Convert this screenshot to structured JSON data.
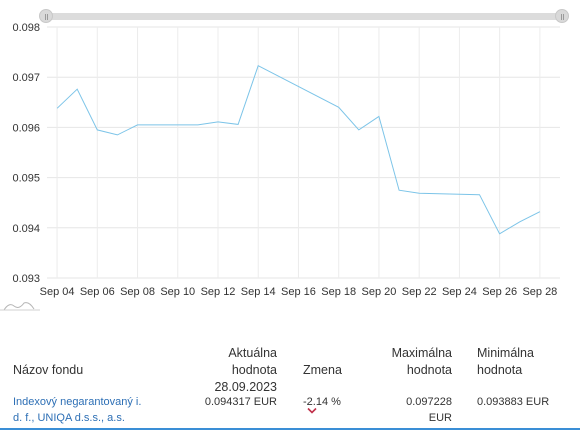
{
  "chart_data": {
    "type": "line",
    "title": "",
    "xlabel": "",
    "ylabel": "",
    "ylim": [
      0.093,
      0.098
    ],
    "y_ticks": [
      "0.093",
      "0.094",
      "0.095",
      "0.096",
      "0.097",
      "0.098"
    ],
    "x_ticks": [
      "Sep 04",
      "Sep 06",
      "Sep 08",
      "Sep 10",
      "Sep 12",
      "Sep 14",
      "Sep 16",
      "Sep 18",
      "Sep 20",
      "Sep 22",
      "Sep 24",
      "Sep 26",
      "Sep 28"
    ],
    "grid": true,
    "line_color": "#7cc4e8",
    "series": [
      {
        "points": [
          [
            "2023-09-04",
            0.09638
          ],
          [
            "2023-09-05",
            0.09676
          ],
          [
            "2023-09-06",
            0.09595
          ],
          [
            "2023-09-07",
            0.09585
          ],
          [
            "2023-09-08",
            0.09605
          ],
          [
            "2023-09-11",
            0.09605
          ],
          [
            "2023-09-12",
            0.09611
          ],
          [
            "2023-09-13",
            0.09606
          ],
          [
            "2023-09-14",
            0.09723
          ],
          [
            "2023-09-18",
            0.0964
          ],
          [
            "2023-09-19",
            0.09595
          ],
          [
            "2023-09-20",
            0.09622
          ],
          [
            "2023-09-21",
            0.09475
          ],
          [
            "2023-09-22",
            0.09469
          ],
          [
            "2023-09-25",
            0.09466
          ],
          [
            "2023-09-26",
            0.09388
          ],
          [
            "2023-09-27",
            0.09412
          ],
          [
            "2023-09-28",
            0.09432
          ]
        ]
      }
    ]
  },
  "table": {
    "headers": {
      "fund_name": "Názov fondu",
      "current_value_line1": "Aktuálna hodnota",
      "current_value_line2": "28.09.2023",
      "change": "Zmena",
      "max_line1": "Maximálna",
      "max_line2": "hodnota",
      "min_line1": "Minimálna",
      "min_line2": "hodnota"
    },
    "row": {
      "fund_line1": "Indexový negarantovaný i.",
      "fund_line2": "d. f., UNIQA d.s.s., a.s.",
      "current_value": "0.094317 EUR",
      "change": "-2.14 %",
      "max": "0.097228 EUR",
      "min": "0.093883 EUR"
    },
    "colors": {
      "link": "#2d6fb5",
      "chevron": "#c0304a",
      "accent_border": "#3a8ed6"
    }
  },
  "icons": {
    "range_handle": "grip-icon",
    "expand": "chevron-down-icon"
  }
}
